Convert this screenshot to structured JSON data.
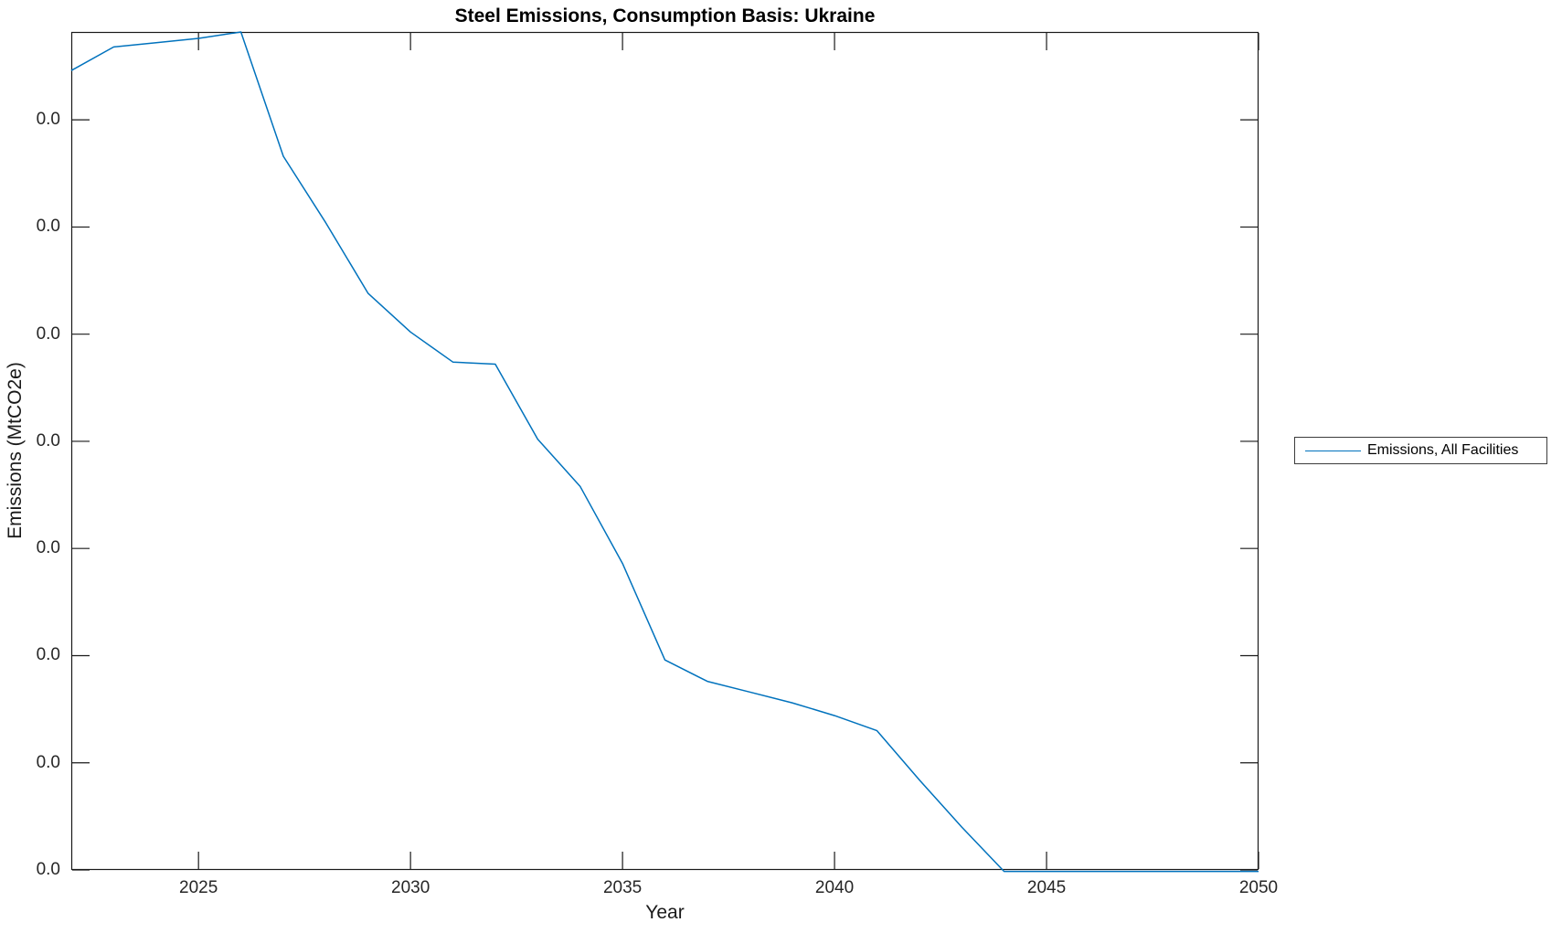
{
  "title": "Steel Emissions, Consumption Basis: Ukraine",
  "x_axis_label": "Year",
  "y_axis_label": "Emissions (MtCO2e)",
  "legend": {
    "label": "Emissions, All Facilities",
    "line_color": "#0072BD"
  },
  "colors": {
    "line": "#0072BD",
    "axis": "#1a1a1a",
    "tick_text": "#262626",
    "background": "#ffffff"
  },
  "chart_data": {
    "type": "line",
    "title": "Steel Emissions, Consumption Basis: Ukraine",
    "xlabel": "Year",
    "ylabel": "Emissions (MtCO2e)",
    "grid": false,
    "legend_position": "right-outside",
    "xlim": [
      2022,
      2050
    ],
    "ylim": [
      0,
      0.0391
    ],
    "x_ticks": [
      2025,
      2030,
      2035,
      2040,
      2045,
      2050
    ],
    "y_ticks": {
      "values": [
        0,
        0.005,
        0.01,
        0.015,
        0.02,
        0.025,
        0.03,
        0.035
      ],
      "labels": [
        "0.0",
        "0.0",
        "0.0",
        "0.0",
        "0.0",
        "0.0",
        "0.0",
        "0.0"
      ]
    },
    "series": [
      {
        "name": "Emissions, All Facilities",
        "color": "#0072BD",
        "x": [
          2022,
          2023,
          2024,
          2025,
          2026,
          2027,
          2028,
          2029,
          2030,
          2031,
          2032,
          2033,
          2034,
          2035,
          2036,
          2037,
          2038,
          2039,
          2040,
          2041,
          2042,
          2043,
          2044,
          2045,
          2046,
          2047,
          2048,
          2049,
          2050
        ],
        "y": [
          0.0373,
          0.0384,
          0.0386,
          0.0388,
          0.0391,
          0.0333,
          0.0302,
          0.0269,
          0.0251,
          0.0237,
          0.0236,
          0.0201,
          0.0179,
          0.0143,
          0.0098,
          0.0088,
          0.0083,
          0.0078,
          0.0072,
          0.0065,
          0.0042,
          0.002,
          0.0,
          0.0,
          0.0,
          0.0,
          0.0,
          0.0,
          0.0
        ]
      }
    ]
  }
}
